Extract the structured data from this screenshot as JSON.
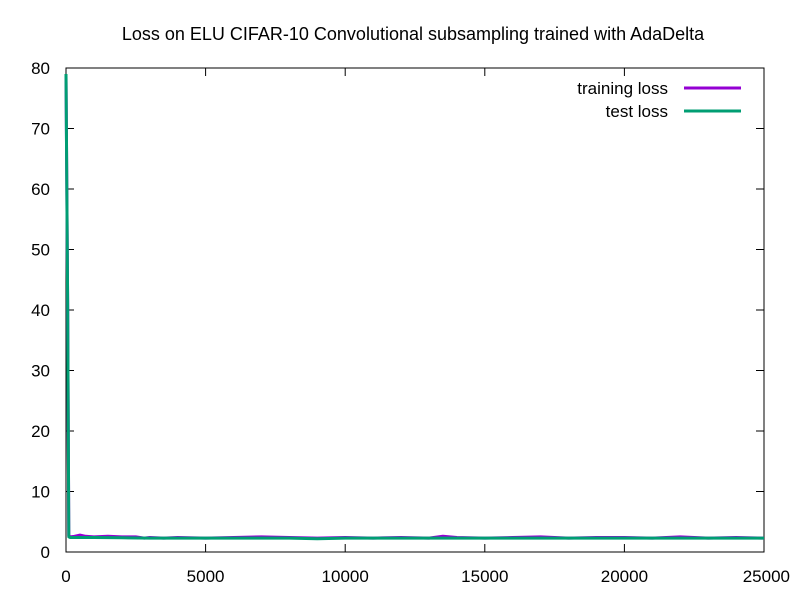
{
  "chart_data": {
    "type": "line",
    "title": "Loss on ELU CIFAR-10 Convolutional subsampling trained with AdaDelta",
    "xlabel": "",
    "ylabel": "",
    "xlim": [
      0,
      25000
    ],
    "ylim": [
      0,
      80
    ],
    "x_ticks": [
      0,
      5000,
      10000,
      15000,
      20000,
      25000
    ],
    "y_ticks": [
      0,
      10,
      20,
      30,
      40,
      50,
      60,
      70,
      80
    ],
    "grid": false,
    "legend_position": "top-right",
    "series": [
      {
        "name": "training loss",
        "color": "#9400d3",
        "x": [
          0,
          60,
          100,
          150,
          300,
          500,
          700,
          1000,
          1500,
          2000,
          2500,
          2800,
          3000,
          3500,
          4000,
          5000,
          6000,
          7000,
          8000,
          9000,
          10000,
          11000,
          12000,
          13000,
          13500,
          14000,
          15000,
          16000,
          17000,
          18000,
          19000,
          20000,
          21000,
          22000,
          23000,
          24000,
          25000
        ],
        "y": [
          79,
          40,
          2.7,
          2.5,
          2.6,
          2.8,
          2.6,
          2.5,
          2.6,
          2.5,
          2.5,
          2.3,
          2.4,
          2.3,
          2.4,
          2.3,
          2.4,
          2.5,
          2.4,
          2.3,
          2.4,
          2.3,
          2.4,
          2.3,
          2.6,
          2.4,
          2.3,
          2.4,
          2.5,
          2.3,
          2.4,
          2.4,
          2.3,
          2.5,
          2.3,
          2.4,
          2.3
        ]
      },
      {
        "name": "test loss",
        "color": "#009e73",
        "x": [
          0,
          60,
          100,
          150,
          500,
          1000,
          2000,
          3000,
          4000,
          5000,
          6000,
          7000,
          8000,
          9000,
          10000,
          12000,
          14000,
          16000,
          18000,
          20000,
          22000,
          24000,
          25000
        ],
        "y": [
          79,
          40,
          2.5,
          2.4,
          2.4,
          2.4,
          2.35,
          2.3,
          2.3,
          2.3,
          2.3,
          2.3,
          2.3,
          2.2,
          2.3,
          2.3,
          2.3,
          2.3,
          2.3,
          2.3,
          2.3,
          2.3,
          2.3
        ]
      }
    ]
  }
}
